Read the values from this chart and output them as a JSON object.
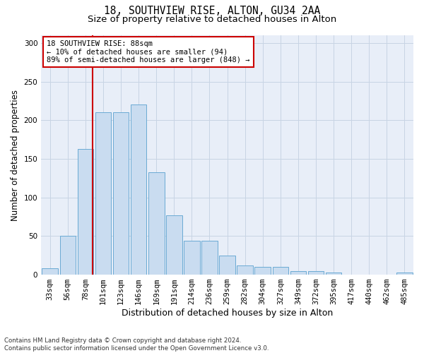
{
  "title": "18, SOUTHVIEW RISE, ALTON, GU34 2AA",
  "subtitle": "Size of property relative to detached houses in Alton",
  "xlabel": "Distribution of detached houses by size in Alton",
  "ylabel": "Number of detached properties",
  "footer_line1": "Contains HM Land Registry data © Crown copyright and database right 2024.",
  "footer_line2": "Contains public sector information licensed under the Open Government Licence v3.0.",
  "bar_labels": [
    "33sqm",
    "56sqm",
    "78sqm",
    "101sqm",
    "123sqm",
    "146sqm",
    "169sqm",
    "191sqm",
    "214sqm",
    "236sqm",
    "259sqm",
    "282sqm",
    "304sqm",
    "327sqm",
    "349sqm",
    "372sqm",
    "395sqm",
    "417sqm",
    "440sqm",
    "462sqm",
    "485sqm"
  ],
  "bar_values": [
    8,
    50,
    163,
    210,
    210,
    220,
    133,
    77,
    44,
    44,
    25,
    12,
    10,
    10,
    5,
    5,
    3,
    0,
    0,
    0,
    3
  ],
  "bar_color": "#c9dcf0",
  "bar_edge_color": "#6aaad4",
  "vline_color": "#cc0000",
  "vline_x": 2.42,
  "annotation_text": "18 SOUTHVIEW RISE: 88sqm\n← 10% of detached houses are smaller (94)\n89% of semi-detached houses are larger (848) →",
  "annotation_box_color": "#cc0000",
  "ylim": [
    0,
    310
  ],
  "yticks": [
    0,
    50,
    100,
    150,
    200,
    250,
    300
  ],
  "grid_color": "#c8d4e4",
  "bg_color": "#e8eef8",
  "title_fontsize": 10.5,
  "subtitle_fontsize": 9.5,
  "xlabel_fontsize": 9,
  "ylabel_fontsize": 8.5,
  "tick_fontsize": 7.5,
  "ann_fontsize": 7.5
}
